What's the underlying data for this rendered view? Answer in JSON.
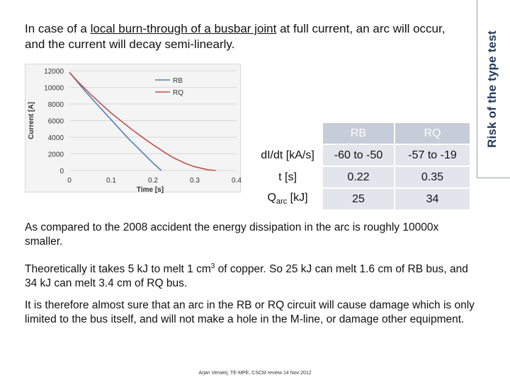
{
  "slide": {
    "heading": {
      "part1": "In case of a ",
      "underline1": "local burn-through of a busbar joint",
      "part2": " at full current, an arc will occur, and the current will decay semi-linearly."
    },
    "side_title": "Risk of the type test",
    "paragraphs": {
      "p1": "As compared to the 2008 accident the energy dissipation in the arc is roughly 10000x smaller.",
      "p2_pre": "Theoretically it takes 5 kJ to melt 1 cm",
      "p2_sup": "3",
      "p2_post": " of copper. So 25 kJ can melt 1.6 cm of RB bus, and 34 kJ can melt 3.4 cm of RQ bus.",
      "p3": "It is therefore almost sure that an arc in the RB or RQ circuit will cause damage which is only limited to the bus itself, and will not make a hole in the M-line, or damage other equipment."
    },
    "footer": "Arjan Verweij, TE-MPE, CSCM review 14 Nov 2012"
  },
  "table": {
    "header": [
      "",
      "RB",
      "RQ"
    ],
    "rows": [
      {
        "label": "dI/dt [kA/s]",
        "rb": "-60 to -50",
        "rq": "-57 to -19"
      },
      {
        "label": "t [s]",
        "rb": "0.22",
        "rq": "0.35"
      },
      {
        "label_main": "Q",
        "label_sub": "arc",
        "label_unit": " [kJ]",
        "rb": "25",
        "rq": "34"
      }
    ]
  },
  "chart_data": {
    "type": "line",
    "xlabel": "Time [s]",
    "ylabel": "Current [A]",
    "xlim": [
      0,
      0.4
    ],
    "ylim": [
      0,
      12000
    ],
    "xticks": [
      "0",
      "0.1",
      "0.2",
      "0.3",
      "0.4"
    ],
    "yticks": [
      "0",
      "2000",
      "4000",
      "6000",
      "8000",
      "10000",
      "12000"
    ],
    "legend_position": "top-center",
    "series": [
      {
        "name": "RB",
        "color": "#4f81bd",
        "x": [
          0,
          0.02,
          0.04,
          0.06,
          0.08,
          0.1,
          0.12,
          0.14,
          0.16,
          0.18,
          0.2,
          0.22
        ],
        "y": [
          11800,
          10600,
          9400,
          8300,
          7200,
          6100,
          5000,
          3900,
          2900,
          1900,
          900,
          0
        ]
      },
      {
        "name": "RQ",
        "color": "#c0504d",
        "x": [
          0,
          0.02,
          0.05,
          0.08,
          0.1,
          0.13,
          0.15,
          0.18,
          0.2,
          0.23,
          0.25,
          0.28,
          0.3,
          0.33,
          0.35
        ],
        "y": [
          11800,
          10700,
          9200,
          7800,
          6900,
          5700,
          4900,
          3800,
          3100,
          2100,
          1500,
          800,
          450,
          100,
          0
        ]
      }
    ]
  }
}
